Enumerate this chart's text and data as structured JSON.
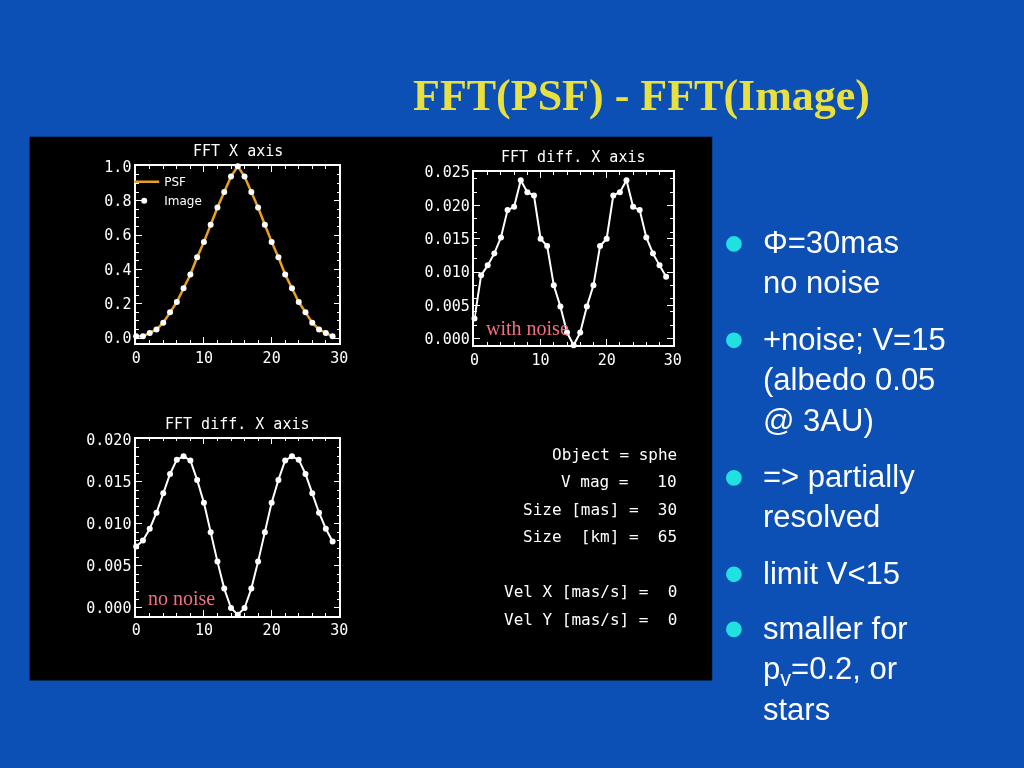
{
  "chart_data": [
    {
      "type": "line",
      "title": "FFT X axis",
      "xlim": [
        0,
        30
      ],
      "ylim": [
        -0.03,
        1.0
      ],
      "xticks": [
        0,
        10,
        20,
        30
      ],
      "yticks": [
        {
          "value": 0,
          "label": "0.0"
        },
        0.2,
        0.4,
        0.6,
        0.8,
        {
          "value": 1,
          "label": "1.0"
        }
      ],
      "grid": false,
      "legend": "top left",
      "marker": "circle",
      "x": [
        0,
        1,
        2,
        3,
        4,
        5,
        6,
        7,
        8,
        9,
        10,
        11,
        12,
        13,
        14,
        15,
        16,
        17,
        18,
        19,
        20,
        21,
        22,
        23,
        24,
        25,
        26,
        27,
        28,
        29
      ],
      "series": [
        {
          "name": "PSF",
          "type": "line",
          "marker": "none",
          "color": "#e8a020",
          "values": [
            0.01,
            0.01,
            0.03,
            0.05,
            0.09,
            0.15,
            0.21,
            0.29,
            0.37,
            0.47,
            0.56,
            0.66,
            0.76,
            0.85,
            0.94,
            1.0,
            0.94,
            0.85,
            0.76,
            0.66,
            0.56,
            0.47,
            0.37,
            0.29,
            0.21,
            0.15,
            0.09,
            0.05,
            0.03,
            0.01
          ]
        },
        {
          "name": "Image",
          "type": "scatter",
          "color": "#ffffff",
          "values": [
            0.01,
            0.01,
            0.03,
            0.05,
            0.09,
            0.15,
            0.21,
            0.29,
            0.37,
            0.47,
            0.56,
            0.66,
            0.76,
            0.85,
            0.94,
            1.0,
            0.94,
            0.85,
            0.76,
            0.66,
            0.56,
            0.47,
            0.37,
            0.29,
            0.21,
            0.15,
            0.09,
            0.05,
            0.03,
            0.01
          ]
        }
      ]
    },
    {
      "type": "line",
      "title": "FFT diff. X axis",
      "xlim": [
        0,
        30
      ],
      "ylim": [
        -0.001,
        0.025
      ],
      "xticks": [
        0,
        10,
        20,
        30
      ],
      "yticks": [
        {
          "value": 0,
          "label": "0.000"
        },
        0.005,
        {
          "value": 0.01,
          "label": "0.010"
        },
        0.015,
        {
          "value": 0.02,
          "label": "0.020"
        },
        0.025
      ],
      "grid": false,
      "marker": "circle",
      "annotations": [
        "with noise"
      ],
      "x": [
        0,
        1,
        2,
        3,
        4,
        5,
        6,
        7,
        8,
        9,
        10,
        11,
        12,
        13,
        14,
        15,
        16,
        17,
        18,
        19,
        20,
        21,
        22,
        23,
        24,
        25,
        26,
        27,
        28,
        29
      ],
      "series": [
        {
          "color": "#ffffff",
          "values": [
            0.003,
            0.0095,
            0.011,
            0.0128,
            0.0152,
            0.0193,
            0.0198,
            0.0238,
            0.022,
            0.0215,
            0.015,
            0.0139,
            0.008,
            0.0048,
            0.0009,
            -0.001,
            0.0009,
            0.0048,
            0.008,
            0.0139,
            0.015,
            0.0215,
            0.022,
            0.0238,
            0.0198,
            0.0193,
            0.0152,
            0.0128,
            0.011,
            0.0093
          ]
        }
      ]
    },
    {
      "type": "line",
      "title": "FFT diff. X axis",
      "xlim": [
        0,
        30
      ],
      "ylim": [
        -0.0009,
        0.0201
      ],
      "xticks": [
        0,
        10,
        20,
        30
      ],
      "yticks": [
        {
          "value": 0,
          "label": "0.000"
        },
        0.005,
        {
          "value": 0.01,
          "label": "0.010"
        },
        0.015,
        {
          "value": 0.02,
          "label": "0.020"
        }
      ],
      "grid": false,
      "marker": "circle",
      "annotations": [
        "no noise"
      ],
      "x": [
        0,
        1,
        2,
        3,
        4,
        5,
        6,
        7,
        8,
        9,
        10,
        11,
        12,
        13,
        14,
        15,
        16,
        17,
        18,
        19,
        20,
        21,
        22,
        23,
        24,
        25,
        26,
        27,
        28,
        29
      ],
      "series": [
        {
          "color": "#ffffff",
          "values": [
            0.0073,
            0.008,
            0.0094,
            0.0113,
            0.0136,
            0.0159,
            0.0176,
            0.018,
            0.0175,
            0.0152,
            0.0125,
            0.009,
            0.0055,
            0.0023,
            0.0,
            -0.0008,
            0.0,
            0.0023,
            0.0055,
            0.009,
            0.0125,
            0.0152,
            0.0175,
            0.018,
            0.0176,
            0.0159,
            0.0136,
            0.0113,
            0.0094,
            0.0079
          ]
        }
      ]
    },
    {
      "type": "other",
      "annotations": [
        "Object = sphe",
        "V mag =   10",
        "Size [mas] =  30",
        "Size  [km] =  65"
      ]
    },
    {
      "type": "other",
      "annotations": [
        "Vel X [mas/s] =  0",
        "Vel Y [mas/s] =  0"
      ]
    },
    {
      "type": "other",
      "title": "FFT(PSF) - FFT(Image)",
      "annotations": [
        "Φ=30mas\nno noise",
        "+noise; V=15\n(albedo 0.05\n@ 3AU)",
        "=> partially\nresolved",
        "limit V<15",
        "smaller for\np$_{v}$=0.2, or\nstars"
      ]
    }
  ]
}
